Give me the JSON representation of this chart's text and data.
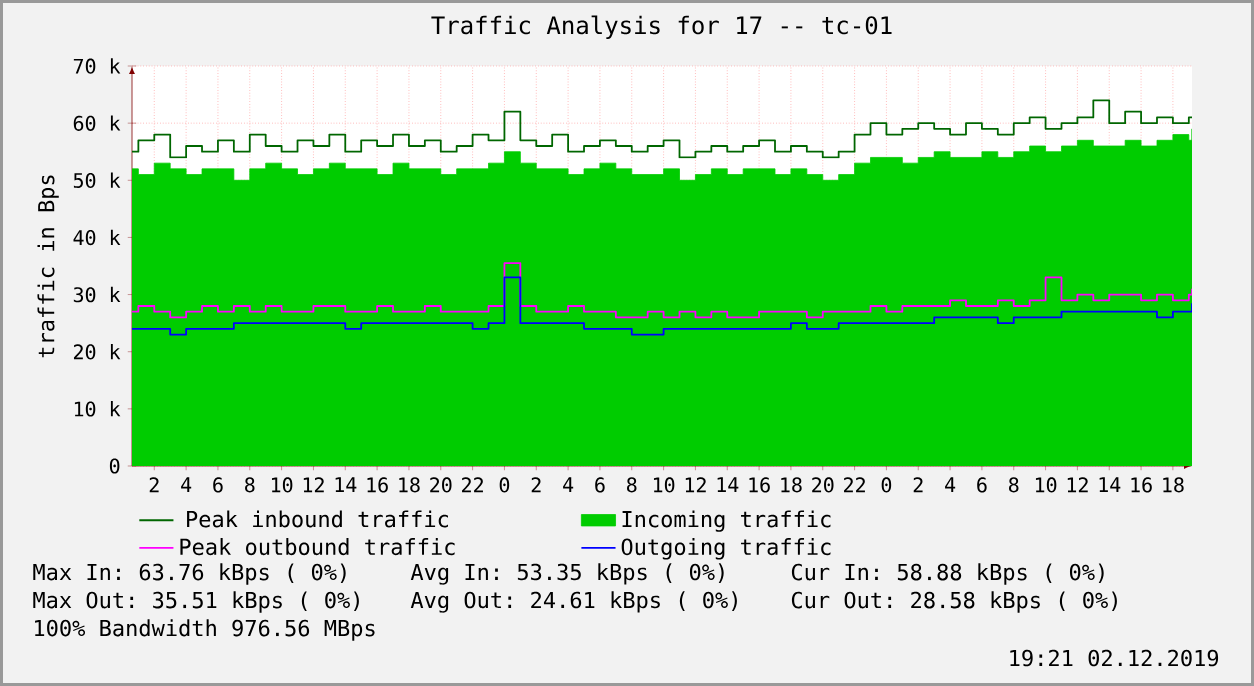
{
  "chart_data": {
    "type": "step",
    "title": "Traffic Analysis for 17 -- tc-01",
    "ylabel": "traffic in Bps",
    "x": [
      "2019-11-30T00:36",
      "2019-11-30T01:00",
      "2019-11-30T02:00",
      "2019-11-30T03:00",
      "2019-11-30T04:00",
      "2019-11-30T05:00",
      "2019-11-30T06:00",
      "2019-11-30T07:00",
      "2019-11-30T08:00",
      "2019-11-30T09:00",
      "2019-11-30T10:00",
      "2019-11-30T11:00",
      "2019-11-30T12:00",
      "2019-11-30T13:00",
      "2019-11-30T14:00",
      "2019-11-30T15:00",
      "2019-11-30T16:00",
      "2019-11-30T17:00",
      "2019-11-30T18:00",
      "2019-11-30T19:00",
      "2019-11-30T20:00",
      "2019-11-30T21:00",
      "2019-11-30T22:00",
      "2019-11-30T23:00",
      "2019-12-01T00:00",
      "2019-12-01T01:00",
      "2019-12-01T02:00",
      "2019-12-01T03:00",
      "2019-12-01T04:00",
      "2019-12-01T05:00",
      "2019-12-01T06:00",
      "2019-12-01T07:00",
      "2019-12-01T08:00",
      "2019-12-01T09:00",
      "2019-12-01T10:00",
      "2019-12-01T11:00",
      "2019-12-01T12:00",
      "2019-12-01T13:00",
      "2019-12-01T14:00",
      "2019-12-01T15:00",
      "2019-12-01T16:00",
      "2019-12-01T17:00",
      "2019-12-01T18:00",
      "2019-12-01T19:00",
      "2019-12-01T20:00",
      "2019-12-01T21:00",
      "2019-12-01T22:00",
      "2019-12-01T23:00",
      "2019-12-02T00:00",
      "2019-12-02T01:00",
      "2019-12-02T02:00",
      "2019-12-02T03:00",
      "2019-12-02T04:00",
      "2019-12-02T05:00",
      "2019-12-02T06:00",
      "2019-12-02T07:00",
      "2019-12-02T08:00",
      "2019-12-02T09:00",
      "2019-12-02T10:00",
      "2019-12-02T11:00",
      "2019-12-02T12:00",
      "2019-12-02T13:00",
      "2019-12-02T14:00",
      "2019-12-02T15:00",
      "2019-12-02T16:00",
      "2019-12-02T17:00",
      "2019-12-02T18:00",
      "2019-12-02T19:00",
      "2019-12-02T19:12"
    ],
    "xlim": [
      "2019-11-30T00:36",
      "2019-12-02T19:12"
    ],
    "xticks": [
      {
        "value": "2019-11-30T02:00",
        "label": "2"
      },
      {
        "value": "2019-11-30T04:00",
        "label": "4"
      },
      {
        "value": "2019-11-30T06:00",
        "label": "6"
      },
      {
        "value": "2019-11-30T08:00",
        "label": "8"
      },
      {
        "value": "2019-11-30T10:00",
        "label": "10"
      },
      {
        "value": "2019-11-30T12:00",
        "label": "12"
      },
      {
        "value": "2019-11-30T14:00",
        "label": "14"
      },
      {
        "value": "2019-11-30T16:00",
        "label": "16"
      },
      {
        "value": "2019-11-30T18:00",
        "label": "18"
      },
      {
        "value": "2019-11-30T20:00",
        "label": "20"
      },
      {
        "value": "2019-11-30T22:00",
        "label": "22"
      },
      {
        "value": "2019-12-01T00:00",
        "label": "0"
      },
      {
        "value": "2019-12-01T02:00",
        "label": "2"
      },
      {
        "value": "2019-12-01T04:00",
        "label": "4"
      },
      {
        "value": "2019-12-01T06:00",
        "label": "6"
      },
      {
        "value": "2019-12-01T08:00",
        "label": "8"
      },
      {
        "value": "2019-12-01T10:00",
        "label": "10"
      },
      {
        "value": "2019-12-01T12:00",
        "label": "12"
      },
      {
        "value": "2019-12-01T14:00",
        "label": "14"
      },
      {
        "value": "2019-12-01T16:00",
        "label": "16"
      },
      {
        "value": "2019-12-01T18:00",
        "label": "18"
      },
      {
        "value": "2019-12-01T20:00",
        "label": "20"
      },
      {
        "value": "2019-12-01T22:00",
        "label": "22"
      },
      {
        "value": "2019-12-02T00:00",
        "label": "0"
      },
      {
        "value": "2019-12-02T02:00",
        "label": "2"
      },
      {
        "value": "2019-12-02T04:00",
        "label": "4"
      },
      {
        "value": "2019-12-02T06:00",
        "label": "6"
      },
      {
        "value": "2019-12-02T08:00",
        "label": "8"
      },
      {
        "value": "2019-12-02T10:00",
        "label": "10"
      },
      {
        "value": "2019-12-02T12:00",
        "label": "12"
      },
      {
        "value": "2019-12-02T14:00",
        "label": "14"
      },
      {
        "value": "2019-12-02T16:00",
        "label": "16"
      },
      {
        "value": "2019-12-02T18:00",
        "label": "18"
      }
    ],
    "ylim": [
      0,
      70000
    ],
    "yticks": [
      0,
      {
        "value": 10000,
        "label": "10 k"
      },
      {
        "value": 20000,
        "label": "20 k"
      },
      {
        "value": 30000,
        "label": "30 k"
      },
      {
        "value": 40000,
        "label": "40 k"
      },
      {
        "value": 50000,
        "label": "50 k"
      },
      {
        "value": 60000,
        "label": "60 k"
      },
      {
        "value": 70000,
        "label": "70 k"
      }
    ],
    "grid": true,
    "legend": "bottom",
    "series": [
      {
        "name": "Peak inbound traffic",
        "color": "#006600",
        "values": [
          55000,
          57000,
          58000,
          54000,
          56000,
          55000,
          57000,
          55000,
          58000,
          56000,
          55000,
          57000,
          56000,
          58000,
          55000,
          57000,
          56000,
          58000,
          56000,
          57000,
          55000,
          56000,
          58000,
          57000,
          62000,
          57000,
          56000,
          58000,
          55000,
          56000,
          57000,
          56000,
          55000,
          56000,
          57000,
          54000,
          55000,
          56000,
          55000,
          56000,
          57000,
          55000,
          56000,
          55000,
          54000,
          55000,
          58000,
          60000,
          58000,
          59000,
          60000,
          59000,
          58000,
          60000,
          59000,
          58000,
          60000,
          61000,
          59000,
          60000,
          61000,
          64000,
          60000,
          62000,
          60000,
          61000,
          60000,
          61000,
          61000
        ]
      },
      {
        "name": "Incoming traffic",
        "color": "#00cc00",
        "type": "area",
        "values": [
          52000,
          51000,
          53000,
          52000,
          51000,
          52000,
          52000,
          50000,
          52000,
          53000,
          52000,
          51000,
          52000,
          53000,
          52000,
          52000,
          51000,
          53000,
          52000,
          52000,
          51000,
          52000,
          52000,
          53000,
          55000,
          53000,
          52000,
          52000,
          51000,
          52000,
          53000,
          52000,
          51000,
          51000,
          52000,
          50000,
          51000,
          52000,
          51000,
          52000,
          52000,
          51000,
          52000,
          51000,
          50000,
          51000,
          53000,
          54000,
          54000,
          53000,
          54000,
          55000,
          54000,
          54000,
          55000,
          54000,
          55000,
          56000,
          55000,
          56000,
          57000,
          56000,
          56000,
          57000,
          56000,
          57000,
          58000,
          57000,
          59000
        ]
      },
      {
        "name": "Peak outbound traffic",
        "color": "#ff00ff",
        "values": [
          27000,
          28000,
          27000,
          26000,
          27000,
          28000,
          27000,
          28000,
          27000,
          28000,
          27000,
          27000,
          28000,
          28000,
          27000,
          27000,
          28000,
          27000,
          27000,
          28000,
          27000,
          27000,
          27000,
          28000,
          35500,
          28000,
          27000,
          27000,
          28000,
          27000,
          27000,
          26000,
          26000,
          27000,
          26000,
          27000,
          26000,
          27000,
          26000,
          26000,
          27000,
          27000,
          27000,
          26000,
          27000,
          27000,
          27000,
          28000,
          27000,
          28000,
          28000,
          28000,
          29000,
          28000,
          28000,
          29000,
          28000,
          29000,
          33000,
          29000,
          30000,
          29000,
          30000,
          30000,
          29000,
          30000,
          29000,
          30000,
          31000
        ]
      },
      {
        "name": "Outgoing traffic",
        "color": "#0000ff",
        "values": [
          24000,
          24000,
          24000,
          23000,
          24000,
          24000,
          24000,
          25000,
          25000,
          25000,
          25000,
          25000,
          25000,
          25000,
          24000,
          25000,
          25000,
          25000,
          25000,
          25000,
          25000,
          25000,
          24000,
          25000,
          33000,
          25000,
          25000,
          25000,
          25000,
          24000,
          24000,
          24000,
          23000,
          23000,
          24000,
          24000,
          24000,
          24000,
          24000,
          24000,
          24000,
          24000,
          25000,
          24000,
          24000,
          25000,
          25000,
          25000,
          25000,
          25000,
          25000,
          26000,
          26000,
          26000,
          26000,
          25000,
          26000,
          26000,
          26000,
          27000,
          27000,
          27000,
          27000,
          27000,
          27000,
          26000,
          27000,
          27000,
          28500
        ]
      }
    ],
    "annotations": [
      "Max In:  63.76 kBps ( 0%)",
      "Avg In:  53.35 kBps ( 0%)",
      "Cur In:  58.88 kBps ( 0%)",
      "Max Out: 35.51 kBps ( 0%)",
      "Avg Out: 24.61 kBps ( 0%)",
      "Cur Out: 28.58 kBps ( 0%)",
      "100% Bandwidth 976.56 MBps",
      "19:21 02.12.2019"
    ]
  }
}
